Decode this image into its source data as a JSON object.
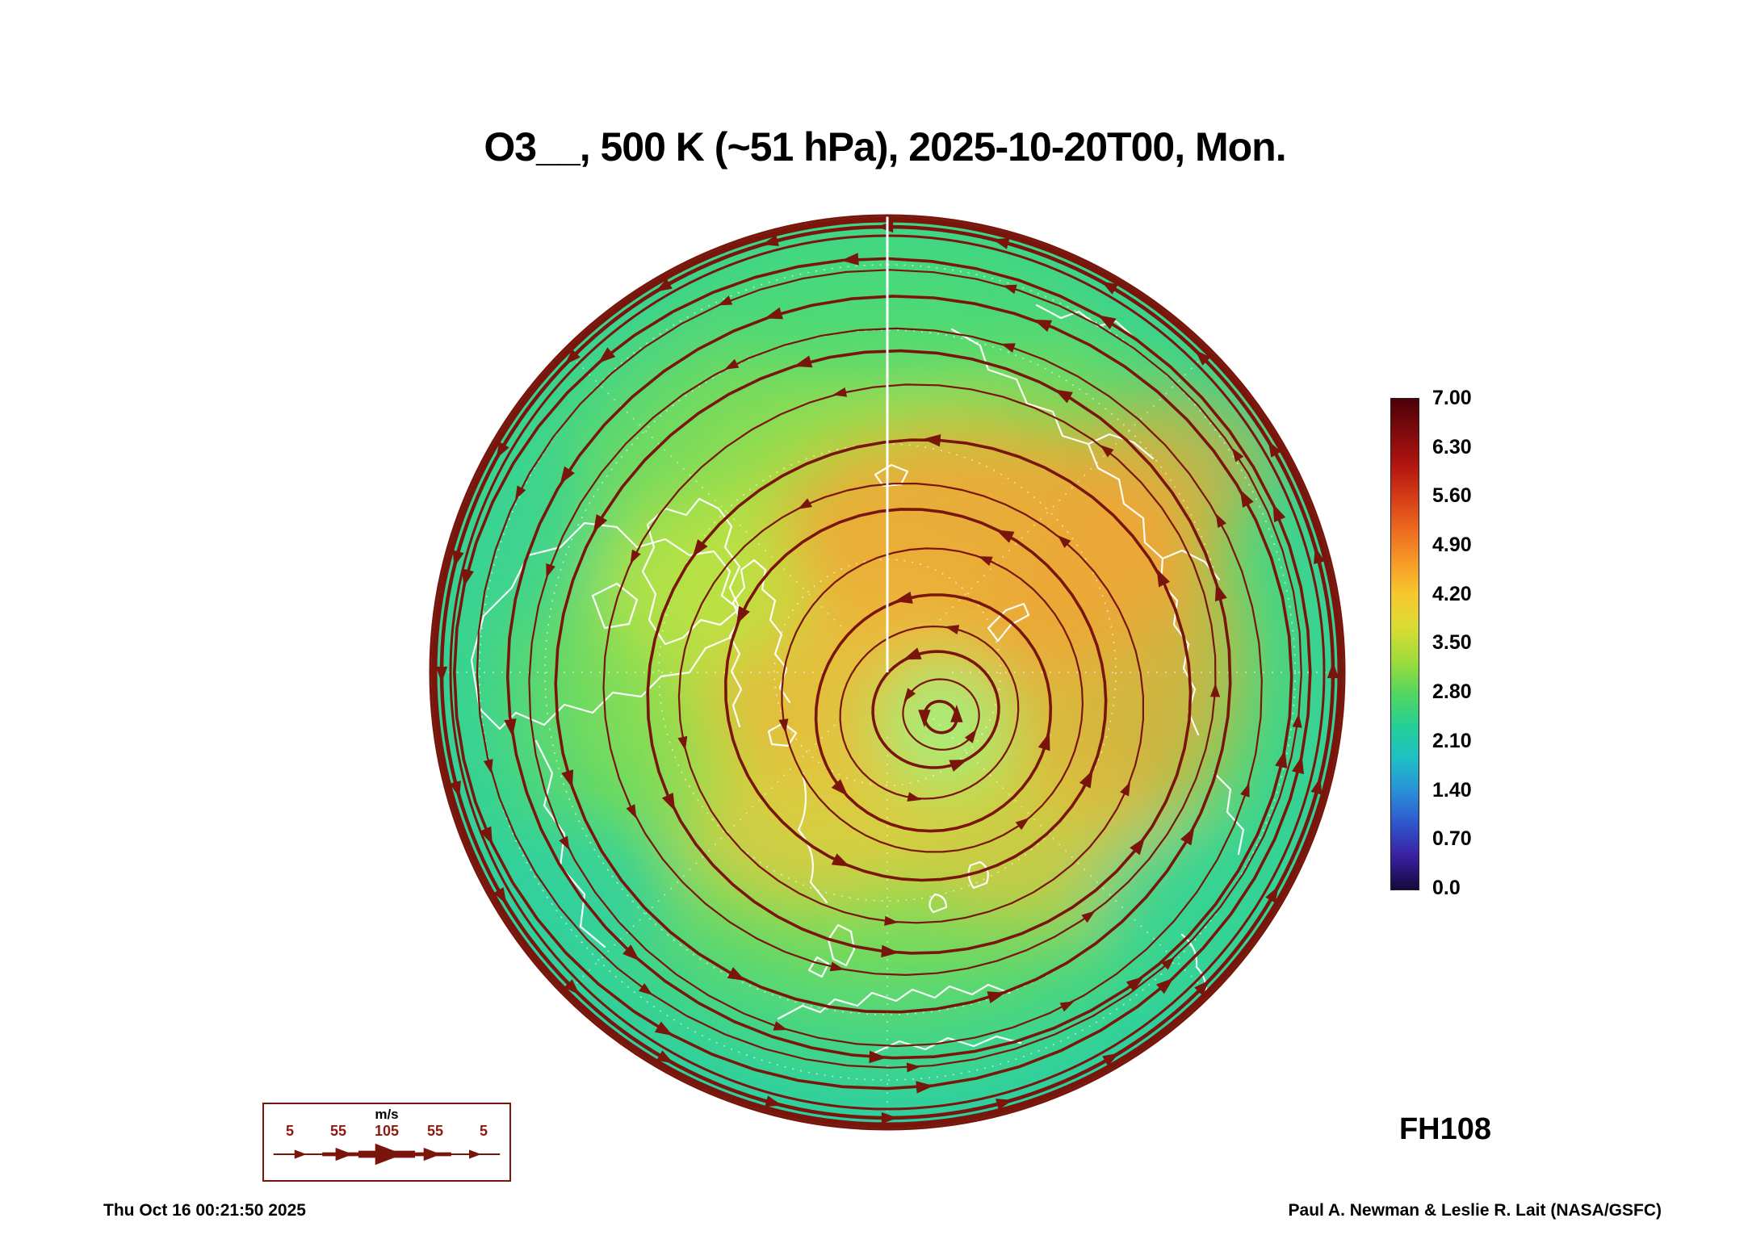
{
  "title": "O3__, 500 K (~51 hPa), 2025-10-20T00, Mon.",
  "forecast_label": "FH108",
  "timestamp": "Thu Oct 16 00:21:50 2025",
  "credit": "Paul A. Newman & Leslie R. Lait (NASA/GSFC)",
  "colorbar": {
    "ticks": [
      "7.00",
      "6.30",
      "5.60",
      "4.90",
      "4.20",
      "3.50",
      "2.80",
      "2.10",
      "1.40",
      "0.70",
      "0.0"
    ],
    "colors": [
      "#4d0008",
      "#7e0b0b",
      "#b01410",
      "#d63c17",
      "#ec6a1e",
      "#f89a28",
      "#f7c92e",
      "#d8dc33",
      "#9fdc3a",
      "#55d65f",
      "#25cf96",
      "#1fbfc4",
      "#2a8fd8",
      "#2f55cc",
      "#3a1fa0",
      "#140a3c"
    ]
  },
  "wind_legend": {
    "units_label": "m/s",
    "ticks": [
      "5",
      "55",
      "105",
      "55",
      "5"
    ]
  },
  "colors": {
    "streamline": "#7a150c",
    "coastline": "#ffffff",
    "legend_accent": "#8b1a10"
  },
  "chart_data": {
    "type": "heatmap",
    "title": "O3__, 500 K (~51 hPa), 2025-10-20T00, Mon.",
    "projection": "Northern Hemisphere polar stereographic (pole at center)",
    "field": "O3 (ozone) on the 500 K isentropic surface (~51 hPa)",
    "valid_time": "2025-10-20T00, Mon.",
    "forecast_hour": "FH108",
    "colorbar": {
      "min": 0.0,
      "max": 7.0,
      "tick_step": 0.7,
      "ticks": [
        7.0,
        6.3,
        5.6,
        4.9,
        4.2,
        3.5,
        2.8,
        2.1,
        1.4,
        0.7,
        0.0
      ]
    },
    "overlays": [
      "dark-red wind streamlines with arrowheads circulating counterclockwise around an off-pole vortex center",
      "dense bunched streamlines forming a dark ring at the disk edge",
      "white coastlines of North America, Greenland, Europe and Siberia",
      "white dashed latitude/longitude graticule with a solid white prime meridian from rim to pole"
    ],
    "wind_speed_legend_mps": [
      5,
      55,
      105,
      55,
      5
    ],
    "field_summary": "Ozone about 2.8 (teal) near the disk edge, about 3.5 (green) at mid-latitudes, a broad 4.2-5.0 (yellow-orange) band across the Arctic, and a lighter-green vortex core near the spiral center slightly below-right of the pole"
  }
}
